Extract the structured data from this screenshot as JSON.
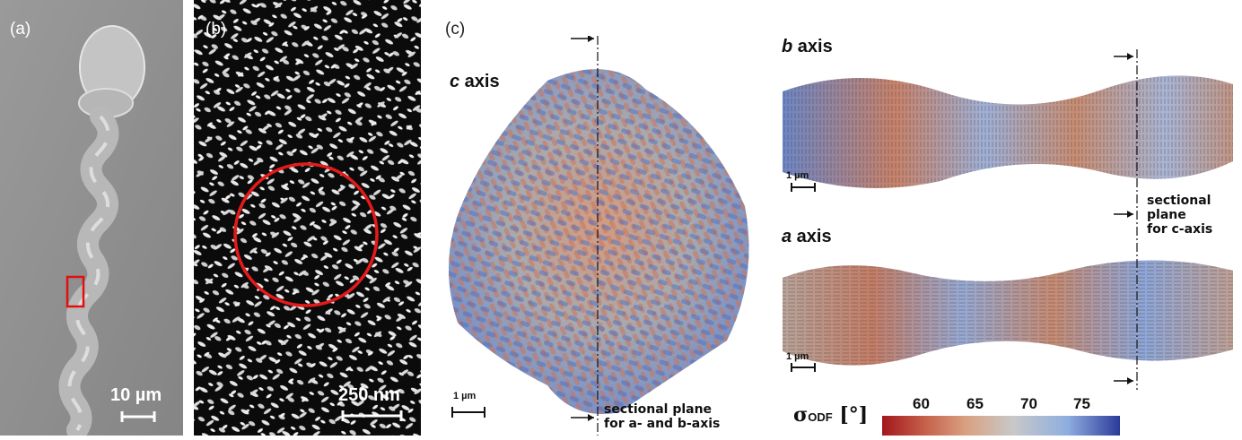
{
  "panel_a": {
    "label": "(a)",
    "scale_text": "10 µm"
  },
  "panel_b": {
    "label": "(b)",
    "scale_text": "250 nm"
  },
  "panel_c": {
    "label": "(c)",
    "c_axis": {
      "italic": "c",
      "rest": " axis"
    },
    "b_axis": {
      "italic": "b",
      "rest": " axis"
    },
    "a_axis": {
      "italic": "a",
      "rest": " axis"
    },
    "scale_c": "1 µm",
    "scale_b": "1 µm",
    "scale_a": "1 µm",
    "section_ab": [
      "sectional plane",
      "for a- and b-axis"
    ],
    "section_c": [
      "sectional",
      "plane",
      "for c-axis"
    ]
  },
  "colorbar": {
    "label_main": "σ",
    "label_sub": "ODF",
    "label_unit": " [°]",
    "ticks": [
      "60",
      "65",
      "70",
      "75"
    ],
    "colors": {
      "low": "#a3171c",
      "mid_low": "#d9a081",
      "mid": "#c8c8c8",
      "mid_high": "#8eaee0",
      "high": "#2b3a9a"
    }
  }
}
